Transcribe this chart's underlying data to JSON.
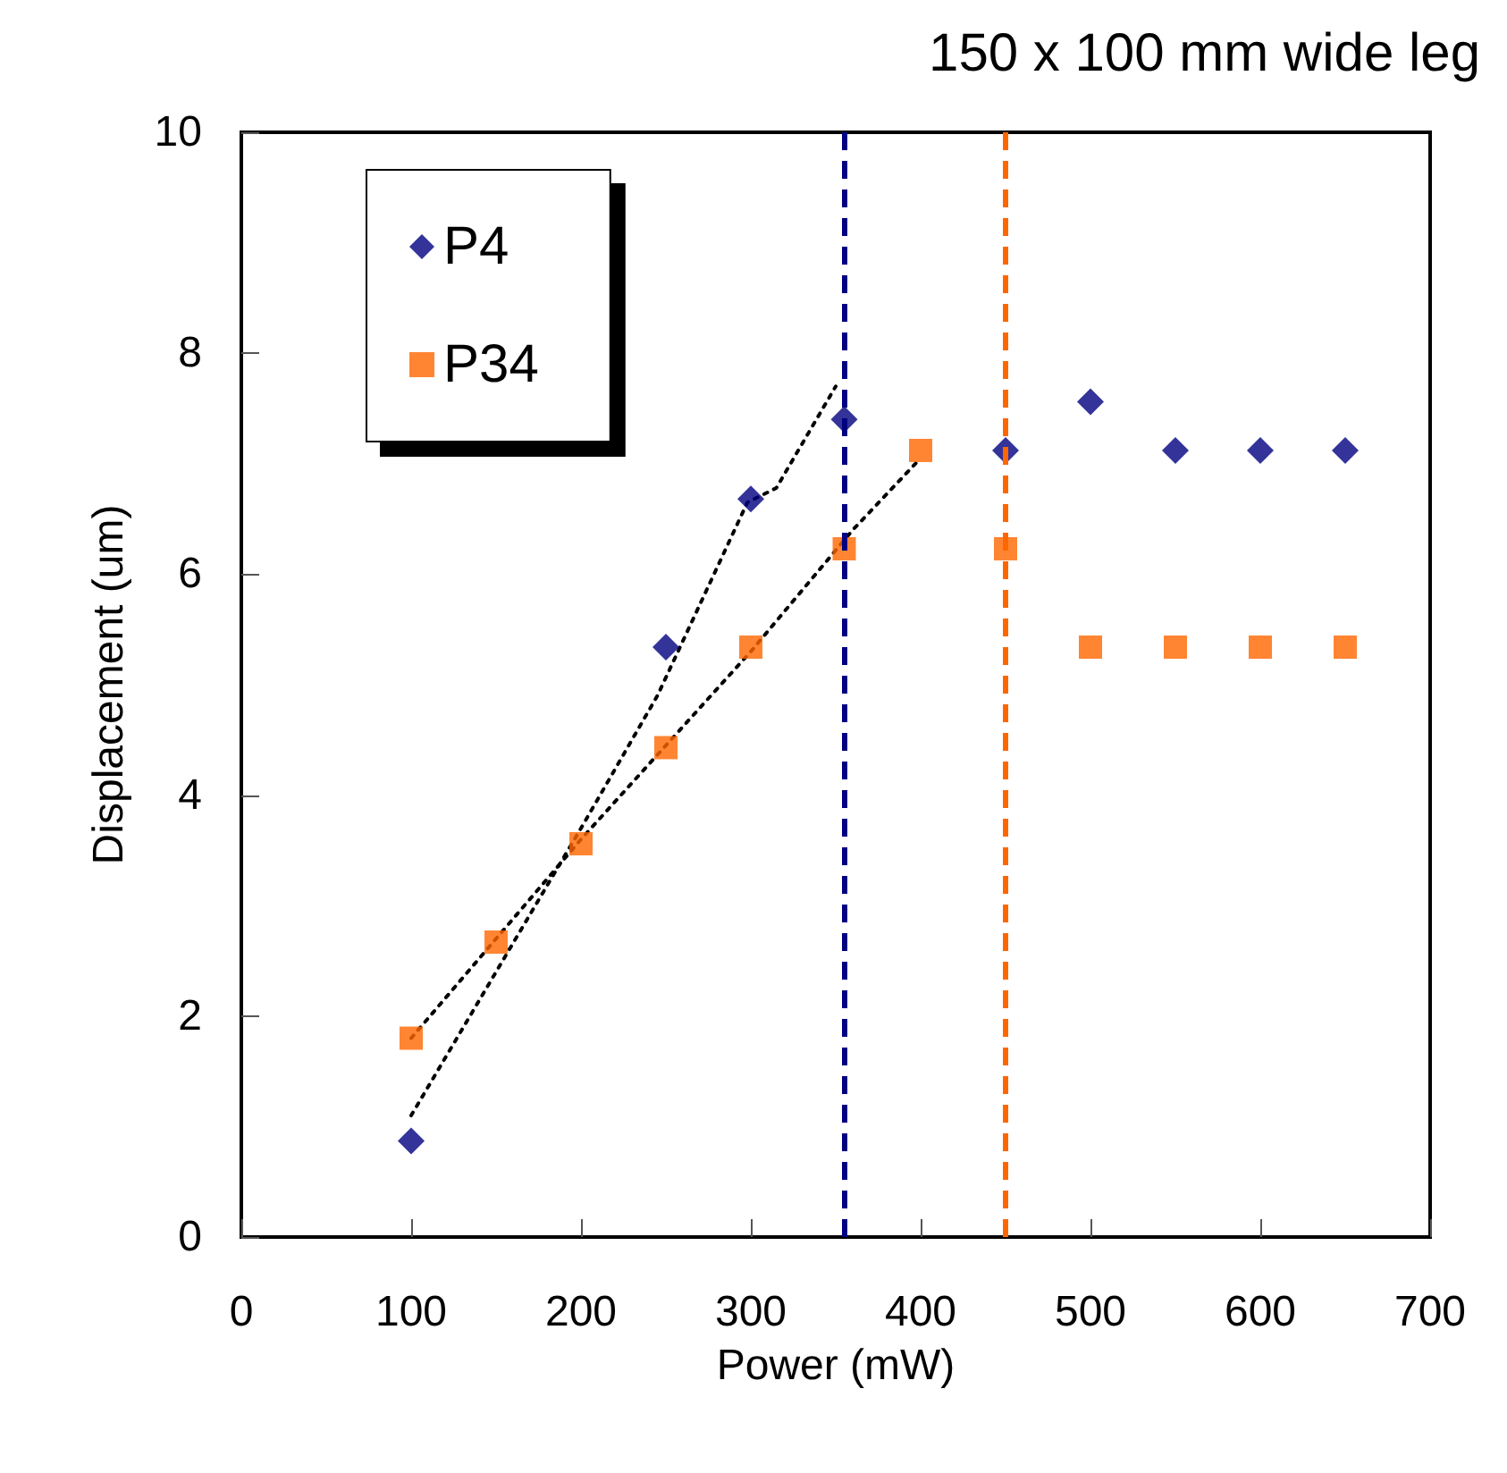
{
  "chart_data": {
    "type": "scatter",
    "title": "150 x 100 mm wide leg",
    "xlabel": "Power (mW)",
    "ylabel": "Displacement (um)",
    "xlim": [
      0,
      700
    ],
    "xticks": [
      0,
      100,
      200,
      300,
      400,
      500,
      600,
      700
    ],
    "ylim": [
      0,
      10
    ],
    "yticks": [
      0,
      2,
      4,
      6,
      8,
      10
    ],
    "grid": false,
    "legend": "top left",
    "series": [
      {
        "name": "P4",
        "color": "#000080",
        "marker": "diamond",
        "x": [
          100,
          150,
          200,
          250,
          300,
          355,
          450,
          500,
          550,
          600,
          650
        ],
        "values": [
          0.87,
          null,
          null,
          5.34,
          6.68,
          7.4,
          7.12,
          7.56,
          7.12,
          7.12,
          7.12
        ]
      },
      {
        "name": "P34",
        "color": "#ff6600",
        "marker": "square",
        "x": [
          100,
          150,
          200,
          250,
          300,
          355,
          400,
          450,
          500,
          550,
          600,
          650
        ],
        "values": [
          1.8,
          2.67,
          3.56,
          4.43,
          5.34,
          6.23,
          7.12,
          6.23,
          5.34,
          5.34,
          5.34,
          5.34
        ]
      },
      {
        "type": "line",
        "color": "#000000",
        "marker": "none",
        "line_style": "dotted",
        "x": [
          100,
          200,
          245,
          298,
          315,
          350
        ],
        "values": [
          1.1,
          3.7,
          4.9,
          6.65,
          6.78,
          7.7
        ]
      },
      {
        "type": "line",
        "color": "#000000",
        "marker": "none",
        "line_style": "dotted",
        "x": [
          100,
          200,
          300,
          360,
          400
        ],
        "values": [
          1.8,
          3.6,
          5.3,
          6.4,
          7.05
        ]
      }
    ],
    "ref_lines": [
      {
        "axis": "x",
        "value": 355,
        "color": "#000080",
        "line_style": "dashed"
      },
      {
        "axis": "x",
        "value": 450,
        "color": "#ff6600",
        "line_style": "dashed"
      }
    ]
  }
}
